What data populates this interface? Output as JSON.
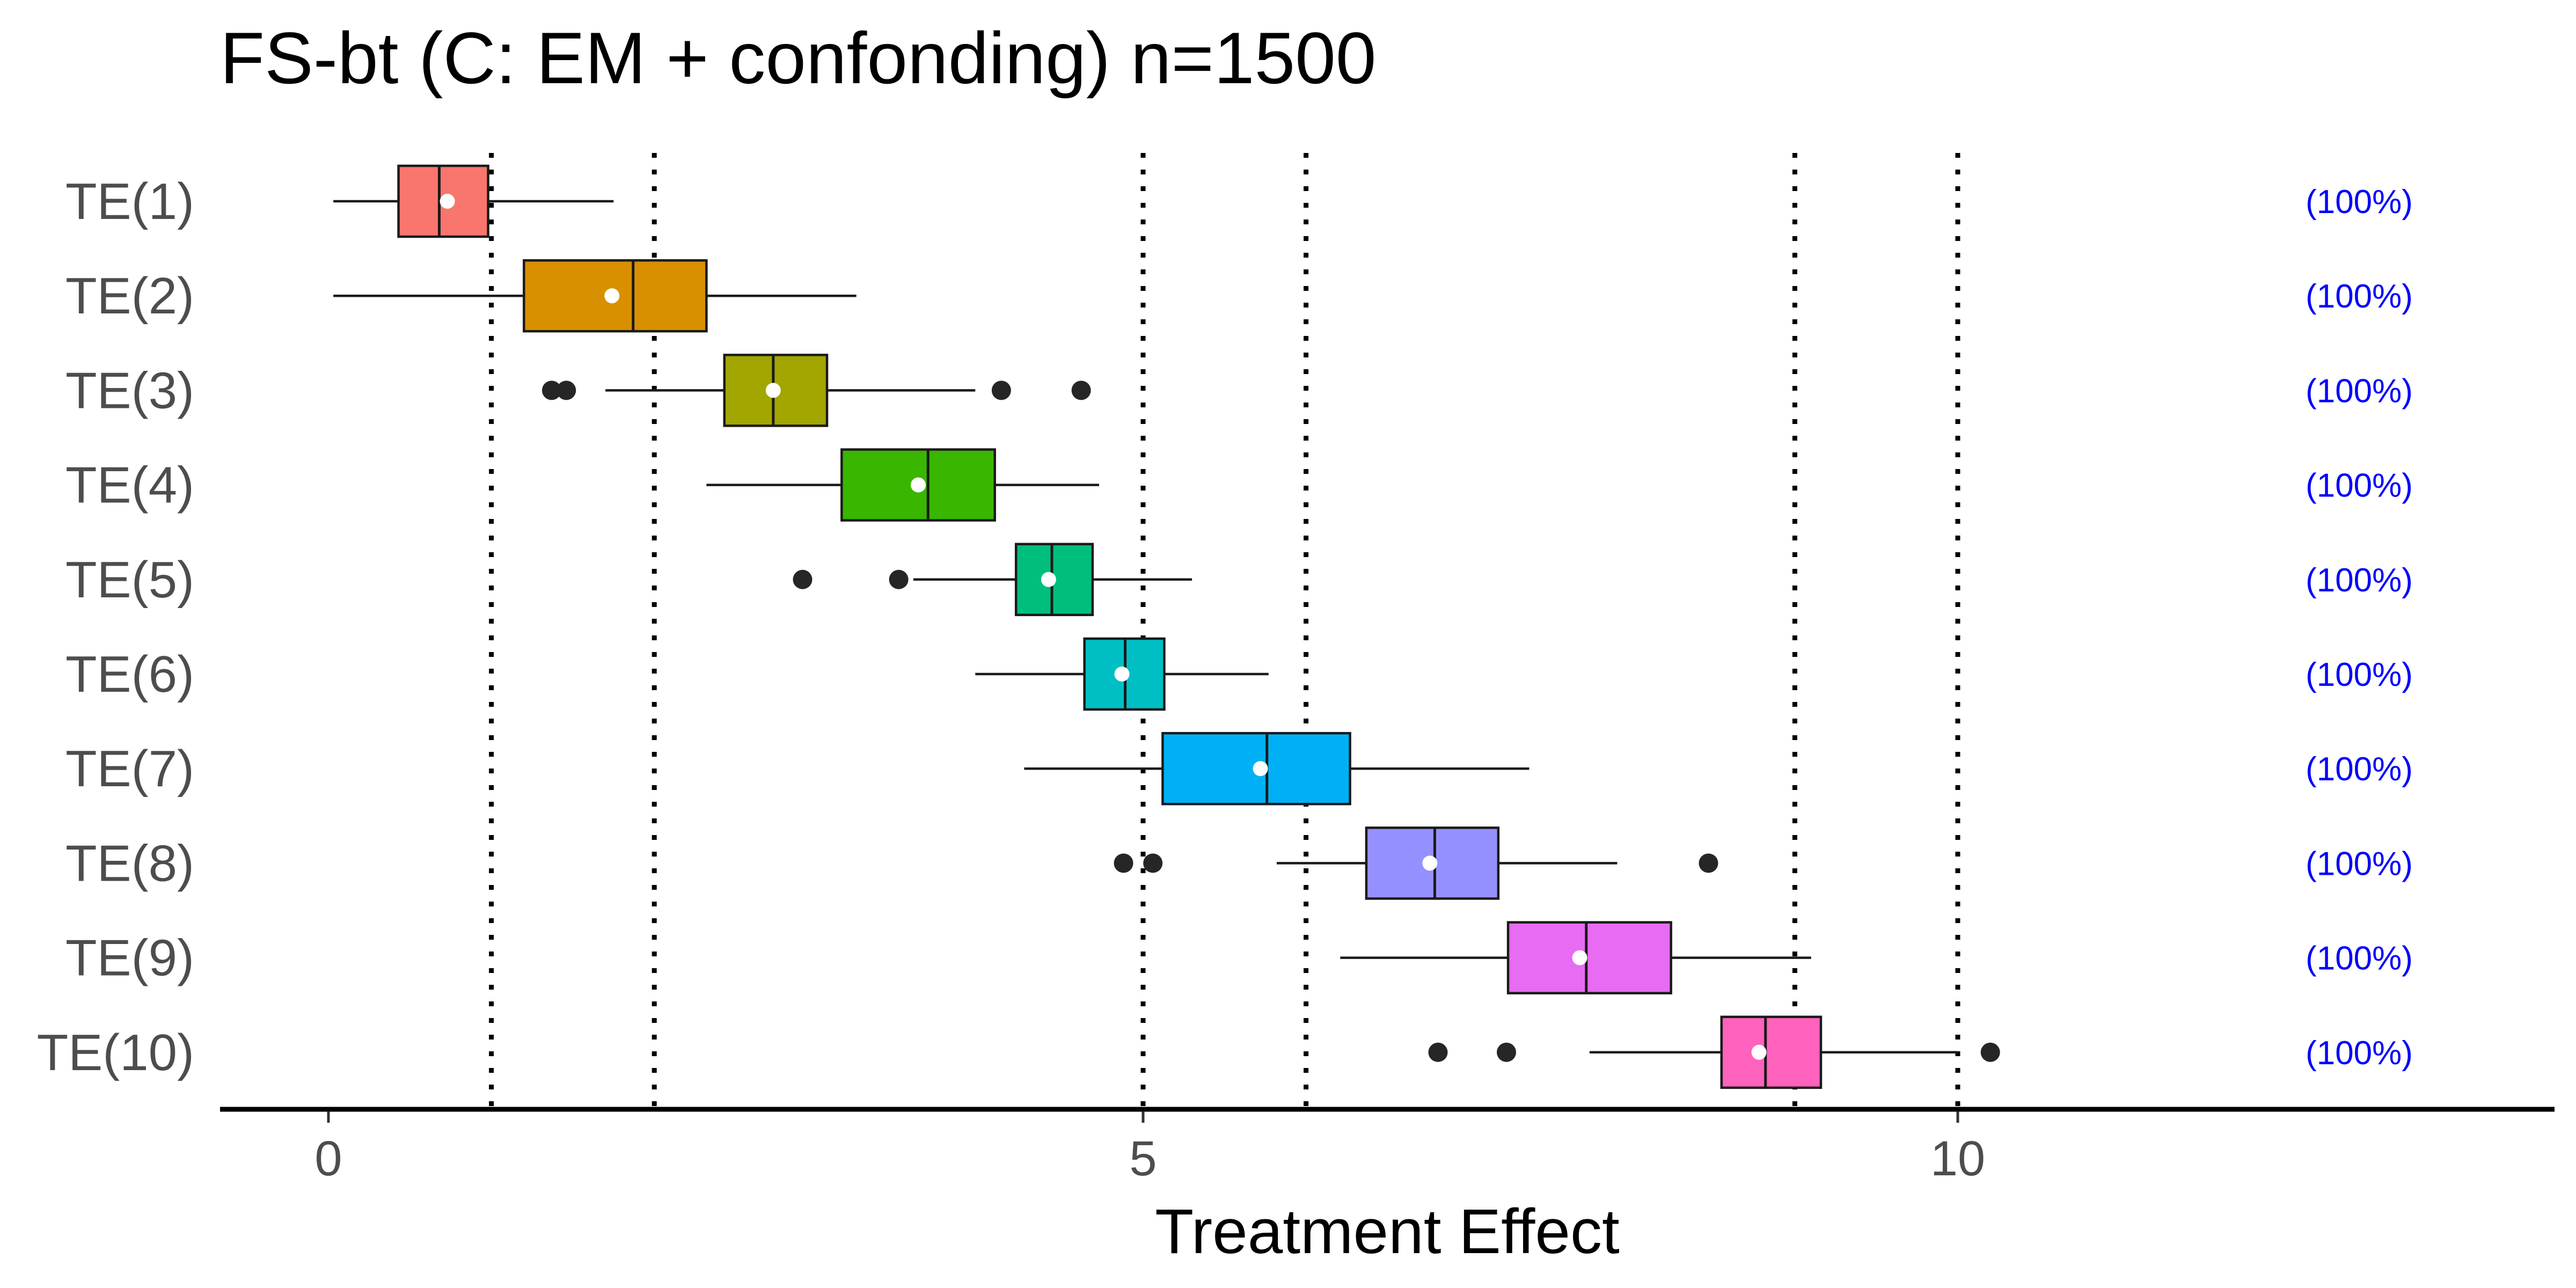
{
  "chart_data": {
    "type": "box",
    "title": "FS-bt (C: EM + confonding) n=1500",
    "xlabel": "Treatment Effect",
    "ylabel": "",
    "xlim": [
      -0.68,
      13.65
    ],
    "xticks": [
      0,
      5,
      10
    ],
    "reference_lines": [
      1,
      2,
      5,
      6,
      9,
      10
    ],
    "grid": false,
    "legend": "none",
    "categories": [
      "TE(1)",
      "TE(2)",
      "TE(3)",
      "TE(4)",
      "TE(5)",
      "TE(6)",
      "TE(7)",
      "TE(8)",
      "TE(9)",
      "TE(10)"
    ],
    "boxes": [
      {
        "label": "TE(1)",
        "whisker_low": 0.03,
        "q1": 0.43,
        "median": 0.68,
        "q3": 0.98,
        "whisker_high": 1.75,
        "mean": 0.73,
        "outliers": [],
        "annotation": "(100%)",
        "color": "#F8766D"
      },
      {
        "label": "TE(2)",
        "whisker_low": 0.03,
        "q1": 1.2,
        "median": 1.87,
        "q3": 2.32,
        "whisker_high": 3.24,
        "mean": 1.74,
        "outliers": [],
        "annotation": "(100%)",
        "color": "#D39200"
      },
      {
        "label": "TE(3)",
        "whisker_low": 1.7,
        "q1": 2.43,
        "median": 2.73,
        "q3": 3.06,
        "whisker_high": 3.97,
        "mean": 2.73,
        "outliers": [
          1.37,
          1.46,
          4.13,
          4.62
        ],
        "annotation": "(100%)",
        "color": "#93AA00"
      },
      {
        "label": "TE(4)",
        "whisker_low": 2.32,
        "q1": 3.15,
        "median": 3.68,
        "q3": 4.09,
        "whisker_high": 4.73,
        "mean": 3.62,
        "outliers": [],
        "annotation": "(100%)",
        "color": "#00BA38"
      },
      {
        "label": "TE(5)",
        "whisker_low": 3.59,
        "q1": 4.22,
        "median": 4.44,
        "q3": 4.69,
        "whisker_high": 5.3,
        "mean": 4.42,
        "outliers": [
          2.91,
          3.5
        ],
        "annotation": "(100%)",
        "color": "#00C19F"
      },
      {
        "label": "TE(6)",
        "whisker_low": 3.97,
        "q1": 4.64,
        "median": 4.89,
        "q3": 5.13,
        "whisker_high": 5.77,
        "mean": 4.87,
        "outliers": [],
        "annotation": "(100%)",
        "color": "#00B9E3"
      },
      {
        "label": "TE(7)",
        "whisker_low": 4.27,
        "q1": 5.12,
        "median": 5.76,
        "q3": 6.27,
        "whisker_high": 7.37,
        "mean": 5.72,
        "outliers": [],
        "annotation": "(100%)",
        "color": "#619CFF"
      },
      {
        "label": "TE(8)",
        "whisker_low": 5.82,
        "q1": 6.37,
        "median": 6.79,
        "q3": 7.18,
        "whisker_high": 7.91,
        "mean": 6.76,
        "outliers": [
          4.88,
          5.06,
          8.47
        ],
        "annotation": "(100%)",
        "color": "#DB72FB"
      },
      {
        "label": "TE(9)",
        "whisker_low": 6.21,
        "q1": 7.24,
        "median": 7.72,
        "q3": 8.24,
        "whisker_high": 9.1,
        "mean": 7.68,
        "outliers": [],
        "annotation": "(100%)",
        "color": "#FF61C3"
      },
      {
        "label": "TE(10)",
        "whisker_low": 7.74,
        "q1": 8.55,
        "median": 8.82,
        "q3": 9.16,
        "whisker_high": 10.0,
        "mean": 8.78,
        "outliers": [
          6.81,
          7.23,
          10.2
        ],
        "annotation": "(100%)",
        "color": "#FF40B4"
      }
    ],
    "box_colors_actual": [
      "#F8766D",
      "#D89000",
      "#A3A500",
      "#39B600",
      "#00BF7D",
      "#00BFC4",
      "#00B0F6",
      "#9590FF",
      "#E76BF3",
      "#FF62BC"
    ]
  }
}
